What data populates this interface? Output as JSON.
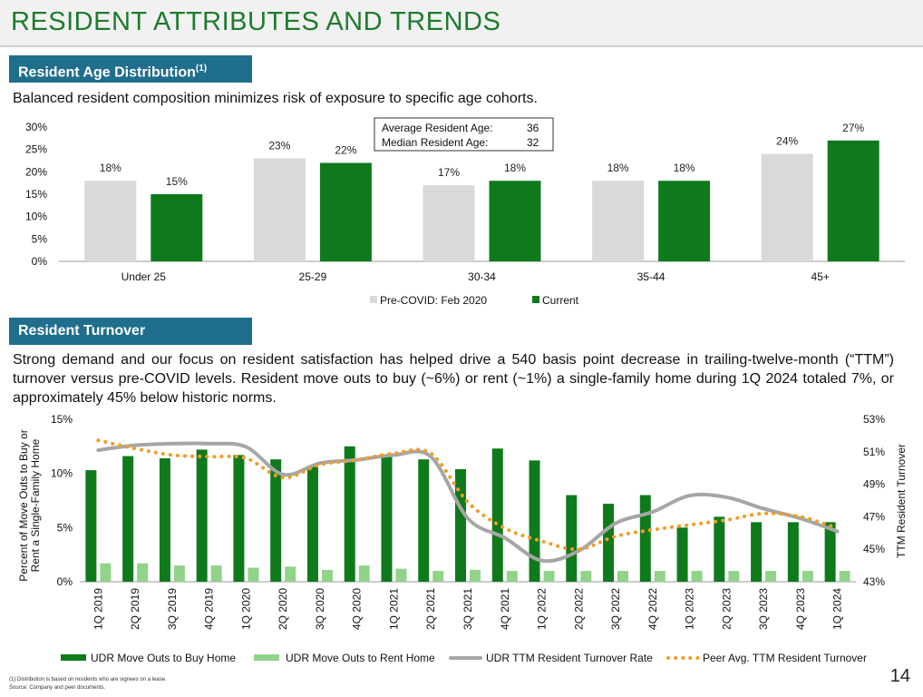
{
  "header": {
    "title": "RESIDENT ATTRIBUTES AND TRENDS"
  },
  "age_section": {
    "tab_label": "Resident Age Distribution",
    "tab_sup": "(1)",
    "description": "Balanced resident composition minimizes risk of exposure to specific age cohorts.",
    "stats": {
      "avg_label": "Average Resident Age:",
      "avg_value": "36",
      "median_label": "Median Resident Age:",
      "median_value": "32"
    }
  },
  "turnover_section": {
    "tab_label": "Resident Turnover",
    "description": "Strong demand and our focus on resident satisfaction has helped drive a 540 basis point decrease in trailing-twelve-month (“TTM”) turnover versus pre-COVID levels. Resident move outs to buy (~6%) or rent (~1%) a single-family home during 1Q 2024 totaled 7%, or approximately 45% below historic norms."
  },
  "footnotes": {
    "note1": "(1)    Distribution is based on residents who are signees on a lease.",
    "source": "Source:  Company and peer documents."
  },
  "page_number": "14",
  "colors": {
    "dark_green": "#0f7a1c",
    "light_gray": "#d9d9d9",
    "light_green": "#92d38a",
    "gray_line": "#a6a6a6",
    "orange_dots": "#f39c24",
    "tab_blue": "#1f6e8c",
    "title_green": "#1e7b2e"
  },
  "chart_data": [
    {
      "type": "bar",
      "title": "Resident Age Distribution",
      "categories": [
        "Under 25",
        "25-29",
        "30-34",
        "35-44",
        "45+"
      ],
      "series": [
        {
          "name": "Pre-COVID: Feb 2020",
          "values": [
            18,
            23,
            17,
            18,
            24
          ],
          "labels": [
            "18%",
            "23%",
            "17%",
            "18%",
            "24%"
          ]
        },
        {
          "name": "Current",
          "values": [
            15,
            22,
            18,
            18,
            27
          ],
          "labels": [
            "15%",
            "22%",
            "18%",
            "18%",
            "27%"
          ]
        }
      ],
      "ylim": [
        0,
        30
      ],
      "yticks": [
        0,
        5,
        10,
        15,
        20,
        25,
        30
      ],
      "ytick_labels": [
        "0%",
        "5%",
        "10%",
        "15%",
        "20%",
        "25%",
        "30%"
      ],
      "legend": "bottom-center"
    },
    {
      "type": "bar",
      "title": "Resident Turnover",
      "categories": [
        "1Q 2019",
        "2Q 2019",
        "3Q 2019",
        "4Q 2019",
        "1Q 2020",
        "2Q 2020",
        "3Q 2020",
        "4Q 2020",
        "1Q 2021",
        "2Q 2021",
        "3Q 2021",
        "4Q 2021",
        "1Q 2022",
        "2Q 2022",
        "3Q 2022",
        "4Q 2022",
        "1Q 2023",
        "2Q 2023",
        "3Q 2023",
        "4Q 2023",
        "1Q 2024"
      ],
      "ylabel": "Percent of Move Outs to Buy or Rent a Single-Family Home",
      "y2label": "TTM Resident Turnover",
      "ylim": [
        0,
        15
      ],
      "yticks": [
        0,
        5,
        10,
        15
      ],
      "ytick_labels": [
        "0%",
        "5%",
        "10%",
        "15%"
      ],
      "y2lim": [
        43,
        53
      ],
      "y2ticks": [
        43,
        45,
        47,
        49,
        51,
        53
      ],
      "y2tick_labels": [
        "43%",
        "45%",
        "47%",
        "49%",
        "51%",
        "53%"
      ],
      "series": [
        {
          "name": "UDR Move Outs to Buy Home",
          "kind": "bar",
          "axis": "left",
          "values": [
            10.3,
            11.6,
            11.4,
            12.2,
            11.7,
            11.3,
            10.7,
            12.5,
            11.7,
            11.3,
            10.4,
            12.3,
            11.2,
            8.0,
            7.2,
            8.0,
            5.0,
            6.0,
            5.5,
            5.5,
            5.5
          ]
        },
        {
          "name": "UDR Move Outs to Rent Home",
          "kind": "bar",
          "axis": "left",
          "values": [
            1.7,
            1.7,
            1.5,
            1.5,
            1.3,
            1.4,
            1.1,
            1.5,
            1.2,
            1.0,
            1.1,
            1.0,
            1.0,
            1.0,
            1.0,
            1.0,
            1.0,
            1.0,
            1.0,
            1.0,
            1.0
          ]
        },
        {
          "name": "UDR TTM Resident Turnover Rate",
          "kind": "line",
          "axis": "right",
          "values": [
            51.1,
            51.4,
            51.5,
            51.5,
            51.3,
            49.6,
            50.3,
            50.5,
            50.8,
            50.7,
            46.9,
            45.7,
            44.3,
            44.9,
            46.6,
            47.3,
            48.3,
            48.2,
            47.5,
            46.9,
            46.1
          ]
        },
        {
          "name": "Peer Avg. TTM Resident Turnover",
          "kind": "dotted-line",
          "axis": "right",
          "values": [
            51.7,
            51.2,
            50.8,
            50.7,
            50.6,
            49.4,
            50.2,
            50.5,
            50.9,
            50.9,
            47.9,
            46.3,
            45.5,
            45.0,
            45.8,
            46.2,
            46.5,
            46.8,
            47.2,
            47.0,
            46.3
          ]
        }
      ],
      "legend": "bottom"
    }
  ]
}
